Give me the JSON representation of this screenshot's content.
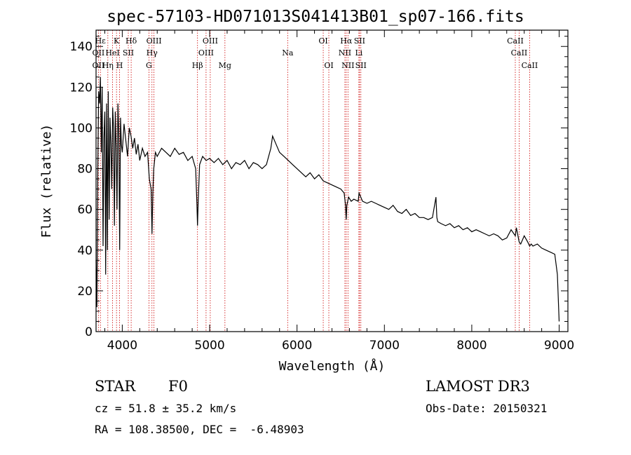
{
  "header": {
    "title": "spec-57103-HD071013S041413B01_sp07-166.fits"
  },
  "info": {
    "object_class": "STAR",
    "subclass": "F0",
    "survey": "LAMOST DR3",
    "cz": "cz = 51.8 ± 35.2 km/s",
    "obs_date": "Obs-Date: 20150321",
    "radec": "RA = 108.38500, DEC =  -6.48903"
  },
  "colors": {
    "line": "#000000",
    "marker_line": "#cc0000",
    "background": "#ffffff"
  },
  "chart_data": {
    "type": "line",
    "title": "spec-57103-HD071013S041413B01_sp07-166.fits",
    "xlabel": "Wavelength (Å)",
    "ylabel": "Flux (relative)",
    "xlim": [
      3700,
      9100
    ],
    "ylim": [
      0,
      148
    ],
    "xticks": [
      4000,
      5000,
      6000,
      7000,
      8000,
      9000
    ],
    "yticks": [
      0,
      20,
      40,
      60,
      80,
      100,
      120,
      140
    ],
    "grid": false,
    "legend": "none",
    "series": [
      {
        "name": "Flux",
        "x": [
          3700,
          3710,
          3720,
          3730,
          3740,
          3750,
          3760,
          3770,
          3780,
          3790,
          3800,
          3810,
          3820,
          3830,
          3840,
          3850,
          3860,
          3870,
          3880,
          3890,
          3900,
          3910,
          3920,
          3930,
          3940,
          3950,
          3960,
          3970,
          3980,
          3990,
          4000,
          4020,
          4040,
          4060,
          4080,
          4100,
          4120,
          4140,
          4160,
          4180,
          4200,
          4230,
          4260,
          4290,
          4310,
          4330,
          4340,
          4350,
          4360,
          4380,
          4400,
          4450,
          4500,
          4550,
          4600,
          4650,
          4700,
          4750,
          4800,
          4840,
          4855,
          4861,
          4868,
          4885,
          4920,
          4960,
          5000,
          5050,
          5100,
          5150,
          5200,
          5250,
          5300,
          5350,
          5400,
          5450,
          5500,
          5550,
          5600,
          5650,
          5700,
          5720,
          5750,
          5800,
          5850,
          5900,
          5950,
          6000,
          6050,
          6100,
          6150,
          6200,
          6250,
          6300,
          6350,
          6400,
          6450,
          6500,
          6540,
          6555,
          6563,
          6570,
          6590,
          6620,
          6650,
          6700,
          6710,
          6750,
          6800,
          6850,
          6900,
          6950,
          7000,
          7050,
          7100,
          7150,
          7200,
          7250,
          7300,
          7350,
          7400,
          7450,
          7500,
          7550,
          7590,
          7600,
          7610,
          7650,
          7700,
          7750,
          7800,
          7850,
          7900,
          7950,
          8000,
          8050,
          8100,
          8150,
          8200,
          8250,
          8300,
          8350,
          8400,
          8450,
          8498,
          8510,
          8542,
          8560,
          8600,
          8640,
          8662,
          8680,
          8700,
          8750,
          8800,
          8850,
          8900,
          8950,
          8980,
          9000
        ],
        "values": [
          35,
          12,
          80,
          118,
          112,
          125,
          88,
          120,
          42,
          95,
          108,
          28,
          112,
          40,
          118,
          55,
          105,
          92,
          70,
          110,
          100,
          52,
          108,
          90,
          60,
          112,
          98,
          40,
          105,
          92,
          88,
          102,
          94,
          86,
          100,
          96,
          90,
          95,
          87,
          92,
          84,
          90,
          86,
          88,
          75,
          70,
          48,
          68,
          80,
          88,
          86,
          90,
          88,
          86,
          90,
          87,
          88,
          84,
          86,
          80,
          62,
          52,
          63,
          82,
          86,
          84,
          85,
          83,
          85,
          82,
          84,
          80,
          83,
          82,
          84,
          80,
          83,
          82,
          80,
          82,
          90,
          96,
          93,
          88,
          86,
          84,
          82,
          80,
          78,
          76,
          78,
          75,
          77,
          74,
          73,
          72,
          71,
          70,
          68,
          62,
          55,
          62,
          66,
          64,
          65,
          64,
          68,
          64,
          63,
          64,
          63,
          62,
          61,
          60,
          62,
          59,
          58,
          60,
          57,
          58,
          56,
          56,
          55,
          56,
          66,
          56,
          54,
          53,
          52,
          53,
          51,
          52,
          50,
          51,
          49,
          50,
          49,
          48,
          47,
          48,
          47,
          45,
          46,
          50,
          47,
          51,
          44,
          43,
          47,
          44,
          42,
          43,
          42,
          43,
          41,
          40,
          39,
          38,
          28,
          5
        ]
      }
    ],
    "line_markers": [
      {
        "label": "Hε",
        "wavelength": 3750,
        "row": 1
      },
      {
        "label": "K",
        "wavelength": 3934,
        "row": 1
      },
      {
        "label": "Hδ",
        "wavelength": 4102,
        "row": 1
      },
      {
        "label": "OIII",
        "wavelength": 4363,
        "row": 1
      },
      {
        "label": "OIII",
        "wavelength": 5007,
        "row": 1
      },
      {
        "label": "OI",
        "wavelength": 6300,
        "row": 1
      },
      {
        "label": "Hα",
        "wavelength": 6563,
        "row": 1
      },
      {
        "label": "SII",
        "wavelength": 6716,
        "row": 1
      },
      {
        "label": "CaII",
        "wavelength": 8498,
        "row": 1
      },
      {
        "label": "OII",
        "wavelength": 3727,
        "row": 2
      },
      {
        "label": "HeI",
        "wavelength": 3889,
        "row": 2
      },
      {
        "label": "SII",
        "wavelength": 4069,
        "row": 2
      },
      {
        "label": "Hγ",
        "wavelength": 4340,
        "row": 2
      },
      {
        "label": "OIII",
        "wavelength": 4959,
        "row": 2
      },
      {
        "label": "Na",
        "wavelength": 5893,
        "row": 2
      },
      {
        "label": "NII",
        "wavelength": 6548,
        "row": 2
      },
      {
        "label": "Li",
        "wavelength": 6708,
        "row": 2
      },
      {
        "label": "CaII",
        "wavelength": 8542,
        "row": 2
      },
      {
        "label": "OII",
        "wavelength": 3727,
        "row": 3
      },
      {
        "label": "Hη",
        "wavelength": 3835,
        "row": 3
      },
      {
        "label": "H",
        "wavelength": 3969,
        "row": 3
      },
      {
        "label": "G",
        "wavelength": 4305,
        "row": 3
      },
      {
        "label": "Hβ",
        "wavelength": 4861,
        "row": 3
      },
      {
        "label": "Mg",
        "wavelength": 5175,
        "row": 3
      },
      {
        "label": "OI",
        "wavelength": 6364,
        "row": 3
      },
      {
        "label": "NII",
        "wavelength": 6583,
        "row": 3
      },
      {
        "label": "SII",
        "wavelength": 6731,
        "row": 3
      },
      {
        "label": "CaII",
        "wavelength": 8662,
        "row": 3
      }
    ]
  }
}
